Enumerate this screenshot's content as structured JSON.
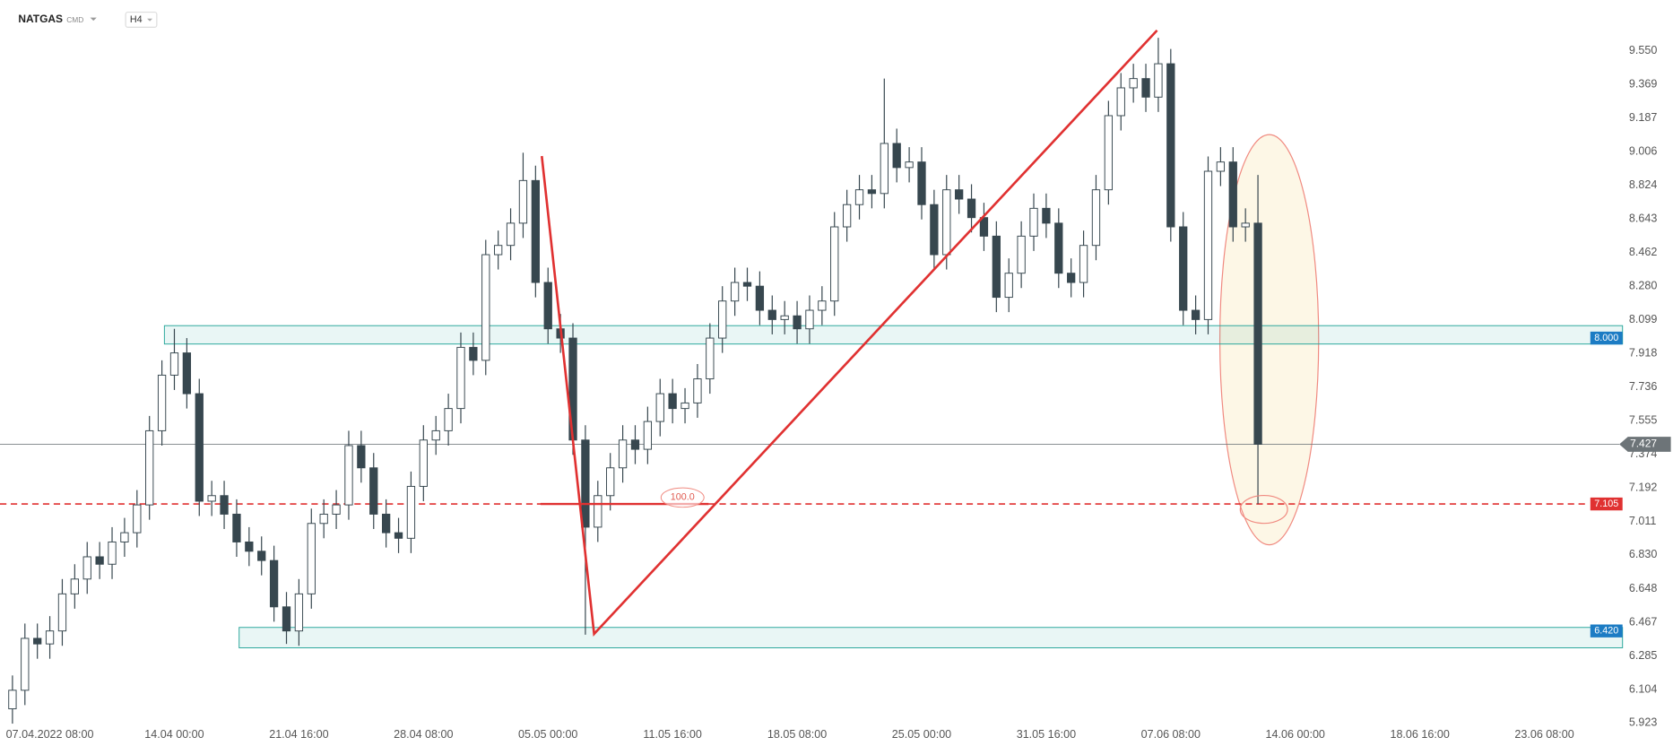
{
  "header": {
    "symbol": "NATGAS",
    "market": "CMD",
    "interval": "H4"
  },
  "chart_data": {
    "type": "candlestick",
    "colors": {
      "up": "#ffffff",
      "down": "#37474f",
      "outline": "#37474f"
    },
    "x": [
      -3,
      -2,
      -1,
      0,
      1,
      2,
      3,
      4,
      5,
      6,
      7,
      8,
      9,
      10,
      11,
      12,
      13,
      14,
      15,
      16,
      17,
      18,
      19,
      20,
      21,
      22,
      23,
      24,
      25,
      26,
      27,
      28,
      29,
      30,
      31,
      32,
      33,
      34,
      35,
      36,
      37,
      38,
      39,
      40,
      41,
      42,
      43,
      44,
      45,
      46,
      47,
      48,
      49,
      50,
      51,
      52,
      53,
      54,
      55,
      56,
      57,
      58,
      59,
      60,
      61,
      62,
      63,
      64,
      65,
      66,
      67,
      68,
      69,
      70,
      71,
      72,
      73,
      74,
      75,
      76,
      77,
      78,
      79,
      80,
      81,
      82,
      83,
      84,
      85,
      86,
      87,
      88,
      89,
      90,
      91,
      92,
      93,
      94,
      95,
      96,
      97
    ],
    "open": [
      6.0,
      6.1,
      6.38,
      6.35,
      6.42,
      6.62,
      6.7,
      6.82,
      6.78,
      6.9,
      6.95,
      7.1,
      7.5,
      7.8,
      7.92,
      7.7,
      7.12,
      7.15,
      7.05,
      6.9,
      6.85,
      6.8,
      6.55,
      6.42,
      6.62,
      7.0,
      7.05,
      7.1,
      7.42,
      7.3,
      7.05,
      6.95,
      6.92,
      7.2,
      7.45,
      7.5,
      7.62,
      7.95,
      7.88,
      8.45,
      8.5,
      8.62,
      8.85,
      8.3,
      8.05,
      8.0,
      7.45,
      6.98,
      7.15,
      7.3,
      7.45,
      7.4,
      7.55,
      7.7,
      7.62,
      7.65,
      7.78,
      8.0,
      8.2,
      8.3,
      8.28,
      8.15,
      8.1,
      8.12,
      8.05,
      8.15,
      8.2,
      8.6,
      8.72,
      8.8,
      8.78,
      9.05,
      8.92,
      8.95,
      8.72,
      8.45,
      8.8,
      8.75,
      8.65,
      8.55,
      8.22,
      8.35,
      8.55,
      8.7,
      8.62,
      8.35,
      8.3,
      8.5,
      8.8,
      9.2,
      9.35,
      9.4,
      9.3,
      9.48,
      8.6,
      8.15,
      8.1,
      8.9,
      8.95,
      8.6,
      8.62
    ],
    "high": [
      6.18,
      6.46,
      6.46,
      6.5,
      6.7,
      6.78,
      6.9,
      6.9,
      6.98,
      7.03,
      7.18,
      7.58,
      7.88,
      8.05,
      8.0,
      7.78,
      7.23,
      7.23,
      7.13,
      6.98,
      6.93,
      6.88,
      6.63,
      6.7,
      7.08,
      7.13,
      7.18,
      7.5,
      7.5,
      7.38,
      7.13,
      7.03,
      7.28,
      7.53,
      7.58,
      7.7,
      8.03,
      8.03,
      8.53,
      8.58,
      8.7,
      9.0,
      8.93,
      8.38,
      8.13,
      8.08,
      7.53,
      7.23,
      7.38,
      7.53,
      7.53,
      7.63,
      7.78,
      7.78,
      7.73,
      7.86,
      8.08,
      8.28,
      8.38,
      8.38,
      8.36,
      8.23,
      8.2,
      8.2,
      8.23,
      8.28,
      8.68,
      8.8,
      8.88,
      8.88,
      9.4,
      9.13,
      9.03,
      9.03,
      8.8,
      8.88,
      8.88,
      8.83,
      8.73,
      8.63,
      8.43,
      8.63,
      8.78,
      8.78,
      8.7,
      8.43,
      8.58,
      8.88,
      9.28,
      9.43,
      9.48,
      9.48,
      9.62,
      9.56,
      8.68,
      8.23,
      8.98,
      9.03,
      9.03,
      8.7,
      8.88
    ],
    "low": [
      5.92,
      6.02,
      6.27,
      6.27,
      6.34,
      6.54,
      6.62,
      6.7,
      6.7,
      6.82,
      6.87,
      7.02,
      7.42,
      7.72,
      7.62,
      7.04,
      7.04,
      6.97,
      6.82,
      6.77,
      6.72,
      6.47,
      6.35,
      6.34,
      6.54,
      6.92,
      6.97,
      7.02,
      7.22,
      6.97,
      6.87,
      6.84,
      6.84,
      7.12,
      7.37,
      7.42,
      7.54,
      7.8,
      7.8,
      8.37,
      8.42,
      8.54,
      8.22,
      7.97,
      7.92,
      7.37,
      6.4,
      6.9,
      7.07,
      7.22,
      7.32,
      7.32,
      7.47,
      7.54,
      7.54,
      7.57,
      7.7,
      7.92,
      8.12,
      8.2,
      8.07,
      8.02,
      8.02,
      7.97,
      7.97,
      8.07,
      8.12,
      8.52,
      8.64,
      8.7,
      8.7,
      8.84,
      8.84,
      8.64,
      8.37,
      8.37,
      8.67,
      8.57,
      8.47,
      8.14,
      8.14,
      8.27,
      8.47,
      8.54,
      8.27,
      8.22,
      8.22,
      8.42,
      8.72,
      9.12,
      9.27,
      9.22,
      9.22,
      8.52,
      8.07,
      8.02,
      8.02,
      8.82,
      8.52,
      8.52,
      7.105
    ],
    "close": [
      6.1,
      6.38,
      6.35,
      6.42,
      6.62,
      6.7,
      6.82,
      6.78,
      6.9,
      6.95,
      7.1,
      7.5,
      7.8,
      7.92,
      7.7,
      7.12,
      7.15,
      7.05,
      6.9,
      6.85,
      6.8,
      6.55,
      6.42,
      6.62,
      7.0,
      7.05,
      7.1,
      7.42,
      7.3,
      7.05,
      6.95,
      6.92,
      7.2,
      7.45,
      7.5,
      7.62,
      7.95,
      7.88,
      8.45,
      8.5,
      8.62,
      8.85,
      8.3,
      8.05,
      8.0,
      7.45,
      6.98,
      7.15,
      7.3,
      7.45,
      7.4,
      7.55,
      7.7,
      7.62,
      7.65,
      7.78,
      8.0,
      8.2,
      8.3,
      8.28,
      8.15,
      8.1,
      8.12,
      8.05,
      8.15,
      8.2,
      8.6,
      8.72,
      8.8,
      8.78,
      9.05,
      8.92,
      8.95,
      8.72,
      8.45,
      8.8,
      8.75,
      8.65,
      8.55,
      8.22,
      8.35,
      8.55,
      8.7,
      8.62,
      8.35,
      8.3,
      8.5,
      8.8,
      9.2,
      9.35,
      9.4,
      9.3,
      9.48,
      8.6,
      8.15,
      8.1,
      8.9,
      8.95,
      8.6,
      8.62,
      7.427
    ],
    "xlim": [
      -4,
      123.6
    ],
    "xticks": [
      {
        "value": 0,
        "label": "07.04.2022  08:00"
      },
      {
        "value": 10,
        "label": "14.04  00:00"
      },
      {
        "value": 20,
        "label": "21.04  16:00"
      },
      {
        "value": 30,
        "label": "28.04  08:00"
      },
      {
        "value": 40,
        "label": "05.05  00:00"
      },
      {
        "value": 50,
        "label": "11.05  16:00"
      },
      {
        "value": 60,
        "label": "18.05  08:00"
      },
      {
        "value": 70,
        "label": "25.05  00:00"
      },
      {
        "value": 80,
        "label": "31.05  16:00"
      },
      {
        "value": 90,
        "label": "07.06  08:00"
      },
      {
        "value": 100,
        "label": "14.06  00:00"
      },
      {
        "value": 110,
        "label": "18.06  16:00"
      },
      {
        "value": 120,
        "label": "23.06  08:00"
      }
    ],
    "ylim": [
      5.92,
      9.822
    ],
    "yticks": [
      {
        "value": 9.55,
        "label": "9.550"
      },
      9.369,
      9.187,
      9.006,
      8.824,
      8.643,
      8.462,
      {
        "value": 8.28,
        "label": "8.280"
      },
      8.099,
      7.918,
      7.736,
      7.555,
      7.374,
      7.192,
      7.011,
      {
        "value": 6.83,
        "label": "6.830"
      },
      6.648,
      6.467,
      6.285,
      6.104,
      5.923
    ],
    "last_price": {
      "value": 7.427,
      "color": "#6d7478"
    },
    "levels": [
      {
        "value": 8,
        "label": "8.000",
        "color": "#1c7cc4"
      },
      {
        "value": 7.105,
        "label": "7.105",
        "color": "#e03131",
        "dashed": true
      },
      {
        "value": 6.42,
        "label": "6.420",
        "color": "#1c7cc4"
      }
    ],
    "zones": [
      {
        "x_start": 9.2,
        "low": 7.968,
        "high": 8.067,
        "color": "#26a69a"
      },
      {
        "x_start": 15.2,
        "low": 6.329,
        "high": 6.439,
        "color": "#26a69a"
      }
    ],
    "trendline": {
      "x": [
        39.5,
        43.7,
        88.9
      ],
      "y": [
        8.982,
        6.404,
        9.66
      ],
      "color": "#e03131"
    },
    "fib": {
      "x": [
        39.4,
        52.9
      ],
      "value": 7.105,
      "label": "100.0",
      "label_x": 50.8,
      "color": "#e03131"
    }
  }
}
